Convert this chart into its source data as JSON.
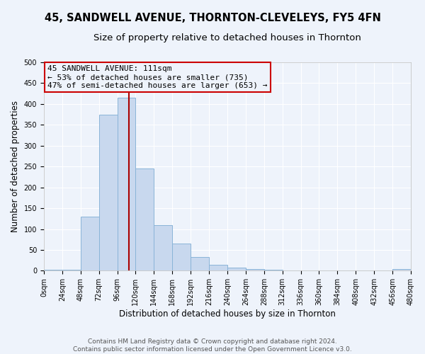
{
  "title": "45, SANDWELL AVENUE, THORNTON-CLEVELEYS, FY5 4FN",
  "subtitle": "Size of property relative to detached houses in Thornton",
  "xlabel": "Distribution of detached houses by size in Thornton",
  "ylabel": "Number of detached properties",
  "bin_edges": [
    0,
    24,
    48,
    72,
    96,
    120,
    144,
    168,
    192,
    216,
    240,
    264,
    288,
    312,
    336,
    360,
    384,
    408,
    432,
    456,
    480
  ],
  "bin_heights": [
    3,
    3,
    130,
    375,
    415,
    245,
    110,
    65,
    33,
    15,
    7,
    5,
    3,
    0,
    0,
    0,
    0,
    0,
    0,
    5
  ],
  "bar_color": "#c8d8ee",
  "bar_edgecolor": "#8ab4d8",
  "vline_x": 111,
  "vline_color": "#aa0000",
  "annotation_line1": "45 SANDWELL AVENUE: 111sqm",
  "annotation_line2": "← 53% of detached houses are smaller (735)",
  "annotation_line3": "47% of semi-detached houses are larger (653) →",
  "annotation_box_edgecolor": "#cc0000",
  "ylim": [
    0,
    500
  ],
  "xlim": [
    0,
    480
  ],
  "footer_text": "Contains HM Land Registry data © Crown copyright and database right 2024.\nContains public sector information licensed under the Open Government Licence v3.0.",
  "tick_labels": [
    "0sqm",
    "24sqm",
    "48sqm",
    "72sqm",
    "96sqm",
    "120sqm",
    "144sqm",
    "168sqm",
    "192sqm",
    "216sqm",
    "240sqm",
    "264sqm",
    "288sqm",
    "312sqm",
    "336sqm",
    "360sqm",
    "384sqm",
    "408sqm",
    "432sqm",
    "456sqm",
    "480sqm"
  ],
  "title_fontsize": 10.5,
  "subtitle_fontsize": 9.5,
  "axis_label_fontsize": 8.5,
  "tick_fontsize": 7,
  "annotation_fontsize": 8,
  "footer_fontsize": 6.5,
  "background_color": "#eef3fb",
  "plot_bg_color": "#eef3fb",
  "grid_color": "#ffffff",
  "yticks": [
    0,
    50,
    100,
    150,
    200,
    250,
    300,
    350,
    400,
    450,
    500
  ]
}
